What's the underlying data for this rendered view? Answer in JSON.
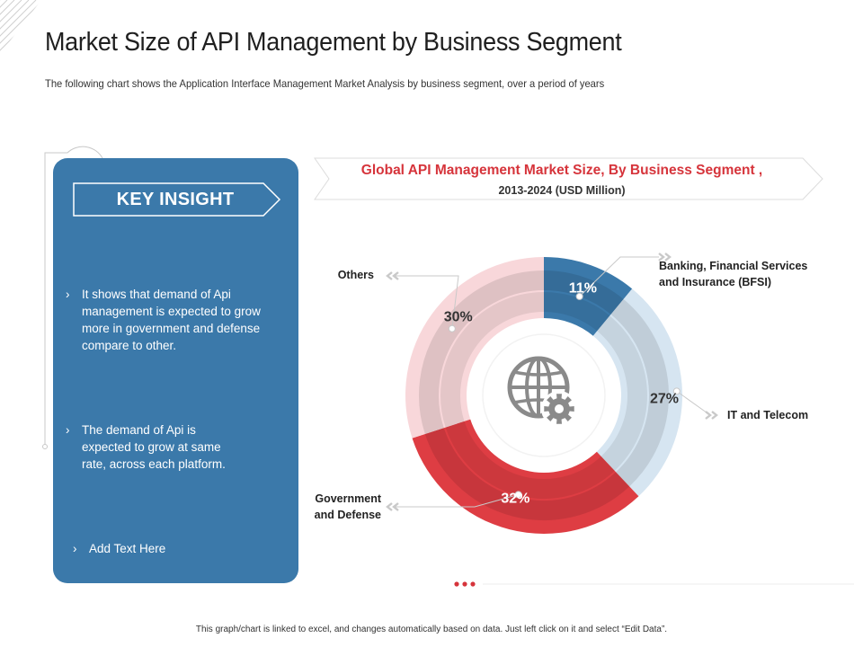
{
  "page": {
    "title": "Market Size of API Management by Business Segment",
    "subtitle": "The following chart shows the Application Interface Management Market Analysis by business segment, over a period of years",
    "footnote": "This graph/chart is linked to excel, and changes automatically based on data. Just left click on it and select “Edit Data”."
  },
  "insight": {
    "heading": "KEY INSIGHT",
    "bullet_glyph": "›",
    "bullets": [
      "It shows that demand of Api\nmanagement is expected to grow\nmore in government and defense\ncompare to other.",
      "The demand of Api is\nexpected to grow at same\nrate, across each platform.",
      "Add Text Here"
    ]
  },
  "chart_data": {
    "type": "pie",
    "title": "Global API Management Market Size, By Business Segment ,",
    "subtitle": "2013-2024 (USD Million)",
    "unit": "%",
    "categories": [
      "Banking, Financial Services\nand Insurance (BFSI)",
      "IT and Telecom",
      "Government\nand Defense",
      "Others"
    ],
    "values": [
      11,
      27,
      32,
      30
    ],
    "value_labels": [
      "11%",
      "27%",
      "32%",
      "30%"
    ]
  },
  "colors": {
    "panel": "#3b79aa",
    "accent_red": "#d6343b",
    "slices": [
      "#3b79aa",
      "#d6e5f1",
      "#de3d43",
      "#f8d7da"
    ],
    "value_text": [
      "#ffffff",
      "#333333",
      "#ffffff",
      "#333333"
    ]
  },
  "icons": [
    "globe-gear-icon",
    "double-chevron-icon"
  ]
}
